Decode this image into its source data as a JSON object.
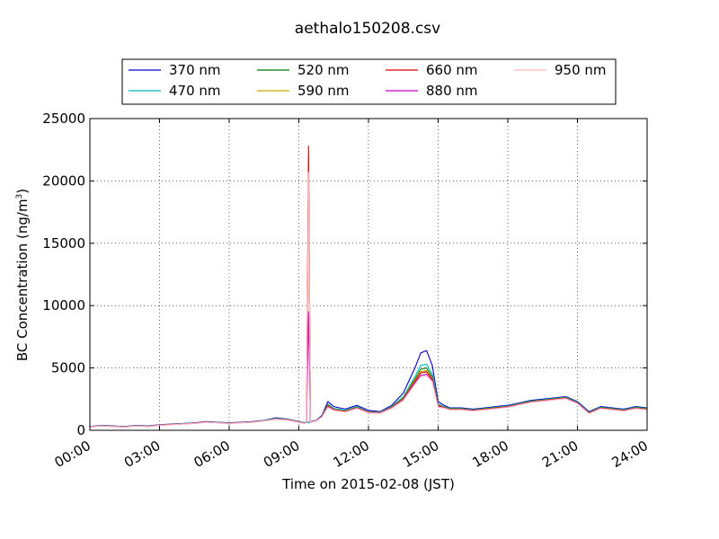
{
  "chart_data": {
    "type": "line",
    "title": "aethalo150208.csv",
    "xlabel": "Time on 2015-02-08 (JST)",
    "ylabel": "BC Concentration (ng/m",
    "ylabel_superscript": "3",
    "ylabel_suffix": ")",
    "xlim": [
      "00:00",
      "24:00"
    ],
    "ylim": [
      0,
      25000
    ],
    "x_ticks": [
      "00:00",
      "03:00",
      "06:00",
      "09:00",
      "12:00",
      "15:00",
      "18:00",
      "21:00",
      "24:00"
    ],
    "y_ticks": [
      "0",
      "5000",
      "10000",
      "15000",
      "20000",
      "25000"
    ],
    "grid": true,
    "legend_placement": "top",
    "x": [
      "00:00",
      "00:30",
      "01:00",
      "01:30",
      "02:00",
      "02:30",
      "03:00",
      "03:30",
      "04:00",
      "04:30",
      "05:00",
      "05:30",
      "06:00",
      "06:30",
      "07:00",
      "07:30",
      "08:00",
      "08:30",
      "09:00",
      "09:15",
      "09:20",
      "09:25",
      "09:30",
      "09:45",
      "10:00",
      "10:15",
      "10:30",
      "11:00",
      "11:30",
      "12:00",
      "12:30",
      "13:00",
      "13:30",
      "14:00",
      "14:15",
      "14:30",
      "14:45",
      "15:00",
      "15:15",
      "15:30",
      "16:00",
      "16:30",
      "17:00",
      "17:30",
      "18:00",
      "18:30",
      "19:00",
      "19:30",
      "20:00",
      "20:30",
      "21:00",
      "21:30",
      "22:00",
      "22:30",
      "23:00",
      "23:30",
      "24:00"
    ],
    "series": [
      {
        "name": "370 nm",
        "color": "#0000cc",
        "values": [
          300,
          400,
          350,
          300,
          400,
          350,
          450,
          500,
          550,
          600,
          700,
          650,
          600,
          650,
          700,
          800,
          1000,
          900,
          700,
          600,
          700,
          600,
          700,
          800,
          1200,
          2300,
          1900,
          1700,
          2000,
          1600,
          1500,
          2000,
          3000,
          5000,
          6200,
          6400,
          5200,
          2300,
          2000,
          1800,
          1800,
          1700,
          1800,
          1900,
          2000,
          2200,
          2400,
          2500,
          2600,
          2700,
          2300,
          1500,
          1900,
          1800,
          1700,
          1900,
          1800
        ]
      },
      {
        "name": "470 nm",
        "color": "#00bbbb",
        "values": [
          300,
          380,
          330,
          290,
          380,
          330,
          430,
          480,
          530,
          580,
          680,
          630,
          580,
          630,
          680,
          780,
          950,
          870,
          680,
          580,
          680,
          580,
          680,
          780,
          1150,
          2100,
          1750,
          1600,
          1900,
          1500,
          1450,
          1900,
          2700,
          4300,
          5200,
          5300,
          4500,
          2100,
          1900,
          1750,
          1750,
          1650,
          1750,
          1850,
          1950,
          2150,
          2350,
          2450,
          2550,
          2650,
          2250,
          1450,
          1850,
          1750,
          1650,
          1850,
          1750
        ]
      },
      {
        "name": "520 nm",
        "color": "#007700",
        "values": [
          290,
          370,
          320,
          280,
          370,
          320,
          420,
          470,
          520,
          570,
          670,
          620,
          570,
          620,
          670,
          770,
          930,
          860,
          670,
          570,
          670,
          21000,
          670,
          770,
          1120,
          2050,
          1700,
          1550,
          1850,
          1480,
          1430,
          1850,
          2600,
          4100,
          4900,
          5000,
          4300,
          2050,
          1870,
          1720,
          1720,
          1630,
          1720,
          1820,
          1920,
          2120,
          2320,
          2420,
          2520,
          2620,
          2220,
          1420,
          1820,
          1720,
          1620,
          1820,
          1720
        ]
      },
      {
        "name": "590 nm",
        "color": "#ccaa00",
        "values": [
          285,
          365,
          315,
          275,
          365,
          315,
          415,
          465,
          515,
          565,
          665,
          615,
          565,
          615,
          665,
          765,
          920,
          850,
          665,
          565,
          665,
          21500,
          665,
          765,
          1110,
          2000,
          1680,
          1530,
          1830,
          1460,
          1420,
          1830,
          2550,
          4000,
          4700,
          4800,
          4200,
          2000,
          1850,
          1700,
          1700,
          1610,
          1700,
          1800,
          1900,
          2100,
          2300,
          2400,
          2500,
          2600,
          2200,
          1400,
          1800,
          1700,
          1600,
          1800,
          1700
        ]
      },
      {
        "name": "660 nm",
        "color": "#dd0000",
        "values": [
          280,
          360,
          310,
          270,
          360,
          310,
          410,
          460,
          510,
          560,
          660,
          610,
          560,
          610,
          660,
          760,
          910,
          840,
          660,
          560,
          660,
          22800,
          660,
          760,
          1100,
          1950,
          1650,
          1500,
          1800,
          1440,
          1400,
          1800,
          2500,
          3900,
          4600,
          4700,
          4100,
          1950,
          1830,
          1680,
          1680,
          1590,
          1680,
          1780,
          1880,
          2080,
          2280,
          2380,
          2480,
          2580,
          2180,
          1380,
          1780,
          1680,
          1580,
          1780,
          1680
        ]
      },
      {
        "name": "880 nm",
        "color": "#cc00cc",
        "values": [
          275,
          355,
          305,
          265,
          355,
          305,
          405,
          455,
          505,
          555,
          655,
          605,
          555,
          605,
          655,
          755,
          900,
          830,
          655,
          555,
          655,
          9500,
          655,
          755,
          1090,
          1900,
          1620,
          1480,
          1780,
          1420,
          1380,
          1780,
          2450,
          3800,
          4400,
          4500,
          4000,
          1900,
          1810,
          1660,
          1660,
          1570,
          1660,
          1760,
          1860,
          2060,
          2260,
          2360,
          2460,
          2560,
          2160,
          1360,
          1760,
          1660,
          1560,
          1760,
          1660
        ]
      },
      {
        "name": "950 nm",
        "color": "#ffb6c1",
        "values": [
          270,
          350,
          300,
          260,
          350,
          300,
          400,
          450,
          500,
          550,
          650,
          600,
          550,
          600,
          650,
          750,
          890,
          820,
          650,
          550,
          650,
          20700,
          650,
          750,
          1080,
          1850,
          1600,
          1460,
          1760,
          1400,
          1360,
          1760,
          2400,
          3700,
          4300,
          4400,
          3900,
          1850,
          1790,
          1640,
          1640,
          1550,
          1640,
          1740,
          1840,
          2040,
          2240,
          2340,
          2440,
          2540,
          2140,
          1340,
          1740,
          1640,
          1540,
          1740,
          1640
        ]
      }
    ]
  }
}
